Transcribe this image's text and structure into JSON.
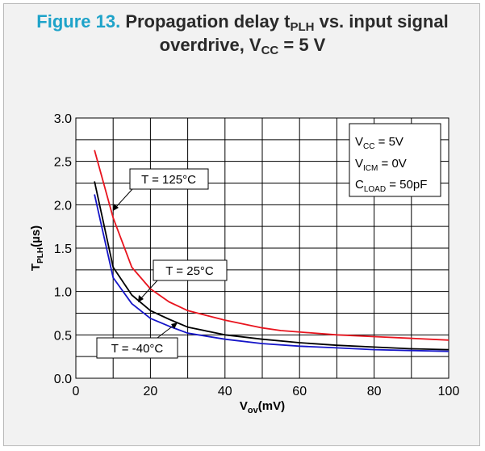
{
  "title": {
    "figure_label": "Figure 13.",
    "part1": "Propagation delay t",
    "part1_sub": "PLH",
    "part2": " vs. input signal",
    "line2": "overdrive, V",
    "line2_sub": "CC",
    "line2_end": " = 5 V"
  },
  "chart_data": {
    "type": "line",
    "xlim": [
      0,
      100
    ],
    "ylim": [
      0,
      3.0
    ],
    "x_ticks": [
      "0",
      "20",
      "40",
      "60",
      "80",
      "100"
    ],
    "y_ticks": [
      "0.0",
      "0.5",
      "1.0",
      "1.5",
      "2.0",
      "2.5",
      "3.0"
    ],
    "xlabel": {
      "main": "V",
      "sub": "ov",
      "end": "(mV)"
    },
    "ylabel": {
      "main": "T",
      "sub": "PLH",
      "end": "(µs)"
    },
    "grid": true,
    "series": [
      {
        "name": "T = 125°C",
        "color": "#e8141e",
        "points": [
          [
            5,
            2.63
          ],
          [
            10,
            1.85
          ],
          [
            15,
            1.28
          ],
          [
            20,
            1.03
          ],
          [
            25,
            0.88
          ],
          [
            30,
            0.78
          ],
          [
            40,
            0.67
          ],
          [
            50,
            0.58
          ],
          [
            55,
            0.55
          ],
          [
            70,
            0.5
          ],
          [
            80,
            0.48
          ],
          [
            90,
            0.46
          ],
          [
            100,
            0.44
          ]
        ]
      },
      {
        "name": "T = 25°C",
        "color": "#000000",
        "points": [
          [
            5,
            2.27
          ],
          [
            10,
            1.28
          ],
          [
            15,
            0.96
          ],
          [
            20,
            0.78
          ],
          [
            25,
            0.68
          ],
          [
            30,
            0.59
          ],
          [
            40,
            0.5
          ],
          [
            50,
            0.45
          ],
          [
            60,
            0.41
          ],
          [
            70,
            0.38
          ],
          [
            80,
            0.36
          ],
          [
            90,
            0.34
          ],
          [
            100,
            0.33
          ]
        ]
      },
      {
        "name": "T = -40°C",
        "color": "#1515c8",
        "points": [
          [
            5,
            2.12
          ],
          [
            10,
            1.16
          ],
          [
            15,
            0.86
          ],
          [
            20,
            0.69
          ],
          [
            25,
            0.6
          ],
          [
            30,
            0.52
          ],
          [
            40,
            0.45
          ],
          [
            50,
            0.4
          ],
          [
            60,
            0.37
          ],
          [
            70,
            0.35
          ],
          [
            80,
            0.33
          ],
          [
            90,
            0.32
          ],
          [
            100,
            0.31
          ]
        ]
      }
    ],
    "conditions": [
      {
        "main": "V",
        "sub": "CC",
        "end": " = 5V"
      },
      {
        "main": "V",
        "sub": "ICM",
        "end": " = 0V"
      },
      {
        "main": "C",
        "sub": "LOAD",
        "end": " = 50pF"
      }
    ]
  }
}
